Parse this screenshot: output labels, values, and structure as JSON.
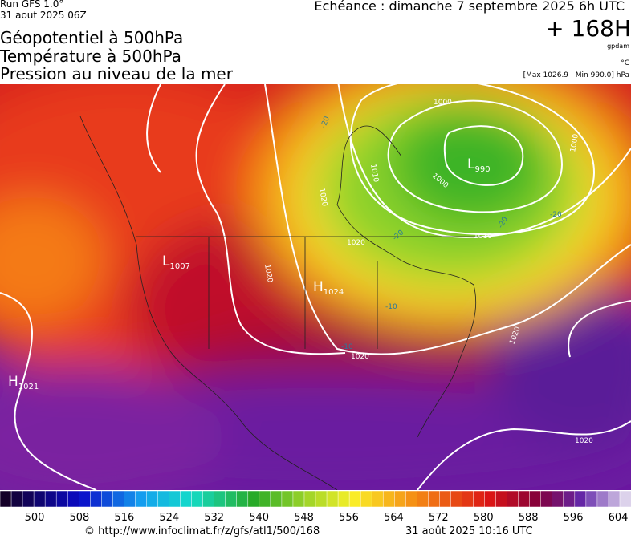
{
  "header": {
    "run": "Run GFS 1.0°",
    "run_date": "31 aout 2025 06Z",
    "titles": [
      "Géopotentiel à 500hPa",
      "Température à 500hPa",
      "Pression au niveau de la mer"
    ],
    "valid": "Echéance : dimanche 7 septembre 2025 6h UTC",
    "lead": "+ 168H",
    "unit_geo": "gpdam",
    "unit_temp": "°C",
    "pressure_range": "[Max 1026.9 | Min 990.0] hPa"
  },
  "map": {
    "centers": [
      {
        "letter": "L",
        "value": "990"
      },
      {
        "letter": "L",
        "value": "1007"
      },
      {
        "letter": "H",
        "value": "1024"
      },
      {
        "letter": "H",
        "value": "1021"
      }
    ],
    "isobar_labels": [
      "1000",
      "1010",
      "1000",
      "1000",
      "1010",
      "1020",
      "1020",
      "1020",
      "1020",
      "1020",
      "1020"
    ],
    "temp_labels": [
      "-20",
      "-20",
      "-20",
      "-20",
      "-10",
      "-10"
    ]
  },
  "colorbar": {
    "ticks": [
      500,
      508,
      516,
      524,
      532,
      540,
      548,
      556,
      564,
      572,
      580,
      588,
      596,
      604
    ]
  },
  "footer": {
    "url": "© http://www.infoclimat.fr/z/gfs/atl1/500/168",
    "stamp": "31 août 2025 10:16 UTC"
  }
}
